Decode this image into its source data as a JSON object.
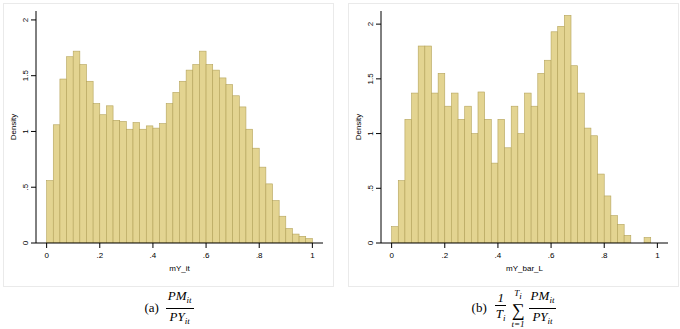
{
  "chart_data": [
    {
      "type": "histogram",
      "y_label": "Density",
      "x_label": "mY_it",
      "color": "#e3d491",
      "caption": {
        "label": "(a)",
        "numerator": "PM",
        "numerator_subscript": "it",
        "denominator": "PY",
        "denominator_subscript": "it"
      },
      "bins": [
        0,
        0.025,
        0.05,
        0.075,
        0.1,
        0.125,
        0.15,
        0.175,
        0.2,
        0.225,
        0.25,
        0.275,
        0.3,
        0.325,
        0.35,
        0.375,
        0.4,
        0.425,
        0.45,
        0.475,
        0.5,
        0.525,
        0.55,
        0.575,
        0.6,
        0.625,
        0.65,
        0.675,
        0.7,
        0.725,
        0.75,
        0.775,
        0.8,
        0.825,
        0.85,
        0.875,
        0.9,
        0.925,
        0.95,
        0.975,
        1
      ],
      "values": [
        0.56,
        1.06,
        1.47,
        1.67,
        1.72,
        1.6,
        1.45,
        1.25,
        1.15,
        1.23,
        1.1,
        1.09,
        1.02,
        1.08,
        1.02,
        1.05,
        1.03,
        1.07,
        1.25,
        1.35,
        1.45,
        1.55,
        1.6,
        1.72,
        1.6,
        1.55,
        1.48,
        1.42,
        1.32,
        1.22,
        1.02,
        0.85,
        0.68,
        0.53,
        0.38,
        0.24,
        0.13,
        0.08,
        0.06,
        0.04
      ],
      "xlim": [
        -0.04,
        1.04
      ],
      "ylim": [
        0,
        2.08
      ],
      "xticks": [
        0,
        {
          "value": 0.2,
          "label": ".2"
        },
        {
          "value": 0.4,
          "label": ".4"
        },
        {
          "value": 0.6,
          "label": ".6"
        },
        {
          "value": 0.8,
          "label": ".8"
        },
        1
      ],
      "yticks": [
        0,
        {
          "value": 0.5,
          "label": ".5"
        },
        1,
        1.5,
        2
      ],
      "grid": false
    },
    {
      "type": "histogram",
      "y_label": "Density",
      "x_label": "mY_bar_L",
      "color": "#e3d491",
      "caption": {
        "label": "(b)",
        "prefix_numerator": "1",
        "prefix_denominator": "T",
        "prefix_denominator_subscript": "i",
        "sum_symbol": "∑",
        "sum_lower": "t=1",
        "sum_upper": "T",
        "sum_upper_subscript": "i",
        "numerator": "PM",
        "numerator_subscript": "it",
        "denominator": "PY",
        "denominator_subscript": "it"
      },
      "bins": [
        0,
        0.025,
        0.05,
        0.075,
        0.1,
        0.125,
        0.15,
        0.175,
        0.2,
        0.225,
        0.25,
        0.275,
        0.3,
        0.325,
        0.35,
        0.375,
        0.4,
        0.425,
        0.45,
        0.475,
        0.5,
        0.525,
        0.55,
        0.575,
        0.6,
        0.625,
        0.65,
        0.675,
        0.7,
        0.725,
        0.75,
        0.775,
        0.8,
        0.825,
        0.85,
        0.875,
        0.9,
        0.925,
        0.95,
        0.975,
        1
      ],
      "values": [
        0.15,
        0.57,
        1.13,
        1.37,
        1.8,
        1.8,
        1.37,
        1.55,
        1.25,
        1.37,
        1.13,
        1.25,
        1.0,
        1.38,
        1.13,
        0.73,
        1.13,
        0.87,
        1.25,
        1.0,
        1.37,
        1.25,
        1.55,
        1.67,
        1.93,
        1.98,
        2.08,
        1.62,
        1.37,
        1.05,
        0.98,
        0.63,
        0.43,
        0.25,
        0.17,
        0.07,
        0,
        0,
        0.05,
        0
      ],
      "xlim": [
        -0.04,
        1.04
      ],
      "ylim": [
        0,
        2.12
      ],
      "xticks": [
        0,
        {
          "value": 0.2,
          "label": ".2"
        },
        {
          "value": 0.4,
          "label": ".4"
        },
        {
          "value": 0.6,
          "label": ".6"
        },
        {
          "value": 0.8,
          "label": ".8"
        },
        1
      ],
      "yticks": [
        0,
        {
          "value": 0.5,
          "label": ".5"
        },
        1,
        1.5,
        2
      ],
      "grid": false
    }
  ]
}
